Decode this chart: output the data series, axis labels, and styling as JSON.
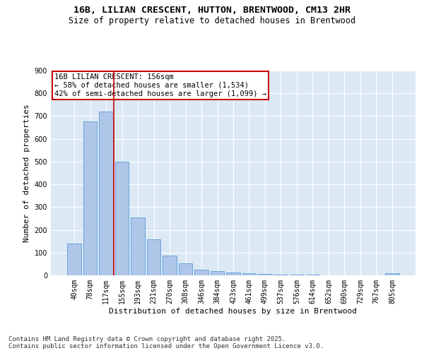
{
  "title_line1": "16B, LILIAN CRESCENT, HUTTON, BRENTWOOD, CM13 2HR",
  "title_line2": "Size of property relative to detached houses in Brentwood",
  "xlabel": "Distribution of detached houses by size in Brentwood",
  "ylabel": "Number of detached properties",
  "categories": [
    "40sqm",
    "78sqm",
    "117sqm",
    "155sqm",
    "193sqm",
    "231sqm",
    "270sqm",
    "308sqm",
    "346sqm",
    "384sqm",
    "423sqm",
    "461sqm",
    "499sqm",
    "537sqm",
    "576sqm",
    "614sqm",
    "652sqm",
    "690sqm",
    "729sqm",
    "767sqm",
    "805sqm"
  ],
  "values": [
    140,
    678,
    720,
    500,
    255,
    157,
    87,
    52,
    25,
    20,
    13,
    8,
    5,
    4,
    2,
    2,
    1,
    1,
    0,
    0,
    8
  ],
  "bar_color": "#aec6e8",
  "bar_edge_color": "#5b9bd5",
  "background_color": "#dce9f5",
  "grid_color": "#ffffff",
  "vline_color": "#cc0000",
  "annotation_text": "16B LILIAN CRESCENT: 156sqm\n← 58% of detached houses are smaller (1,534)\n42% of semi-detached houses are larger (1,099) →",
  "annotation_box_color": "#cc0000",
  "ylim": [
    0,
    900
  ],
  "yticks": [
    0,
    100,
    200,
    300,
    400,
    500,
    600,
    700,
    800,
    900
  ],
  "footer_line1": "Contains HM Land Registry data © Crown copyright and database right 2025.",
  "footer_line2": "Contains public sector information licensed under the Open Government Licence v3.0.",
  "title_fontsize": 9.5,
  "subtitle_fontsize": 8.5,
  "axis_label_fontsize": 8,
  "tick_fontsize": 7,
  "annotation_fontsize": 7.5,
  "footer_fontsize": 6.5
}
